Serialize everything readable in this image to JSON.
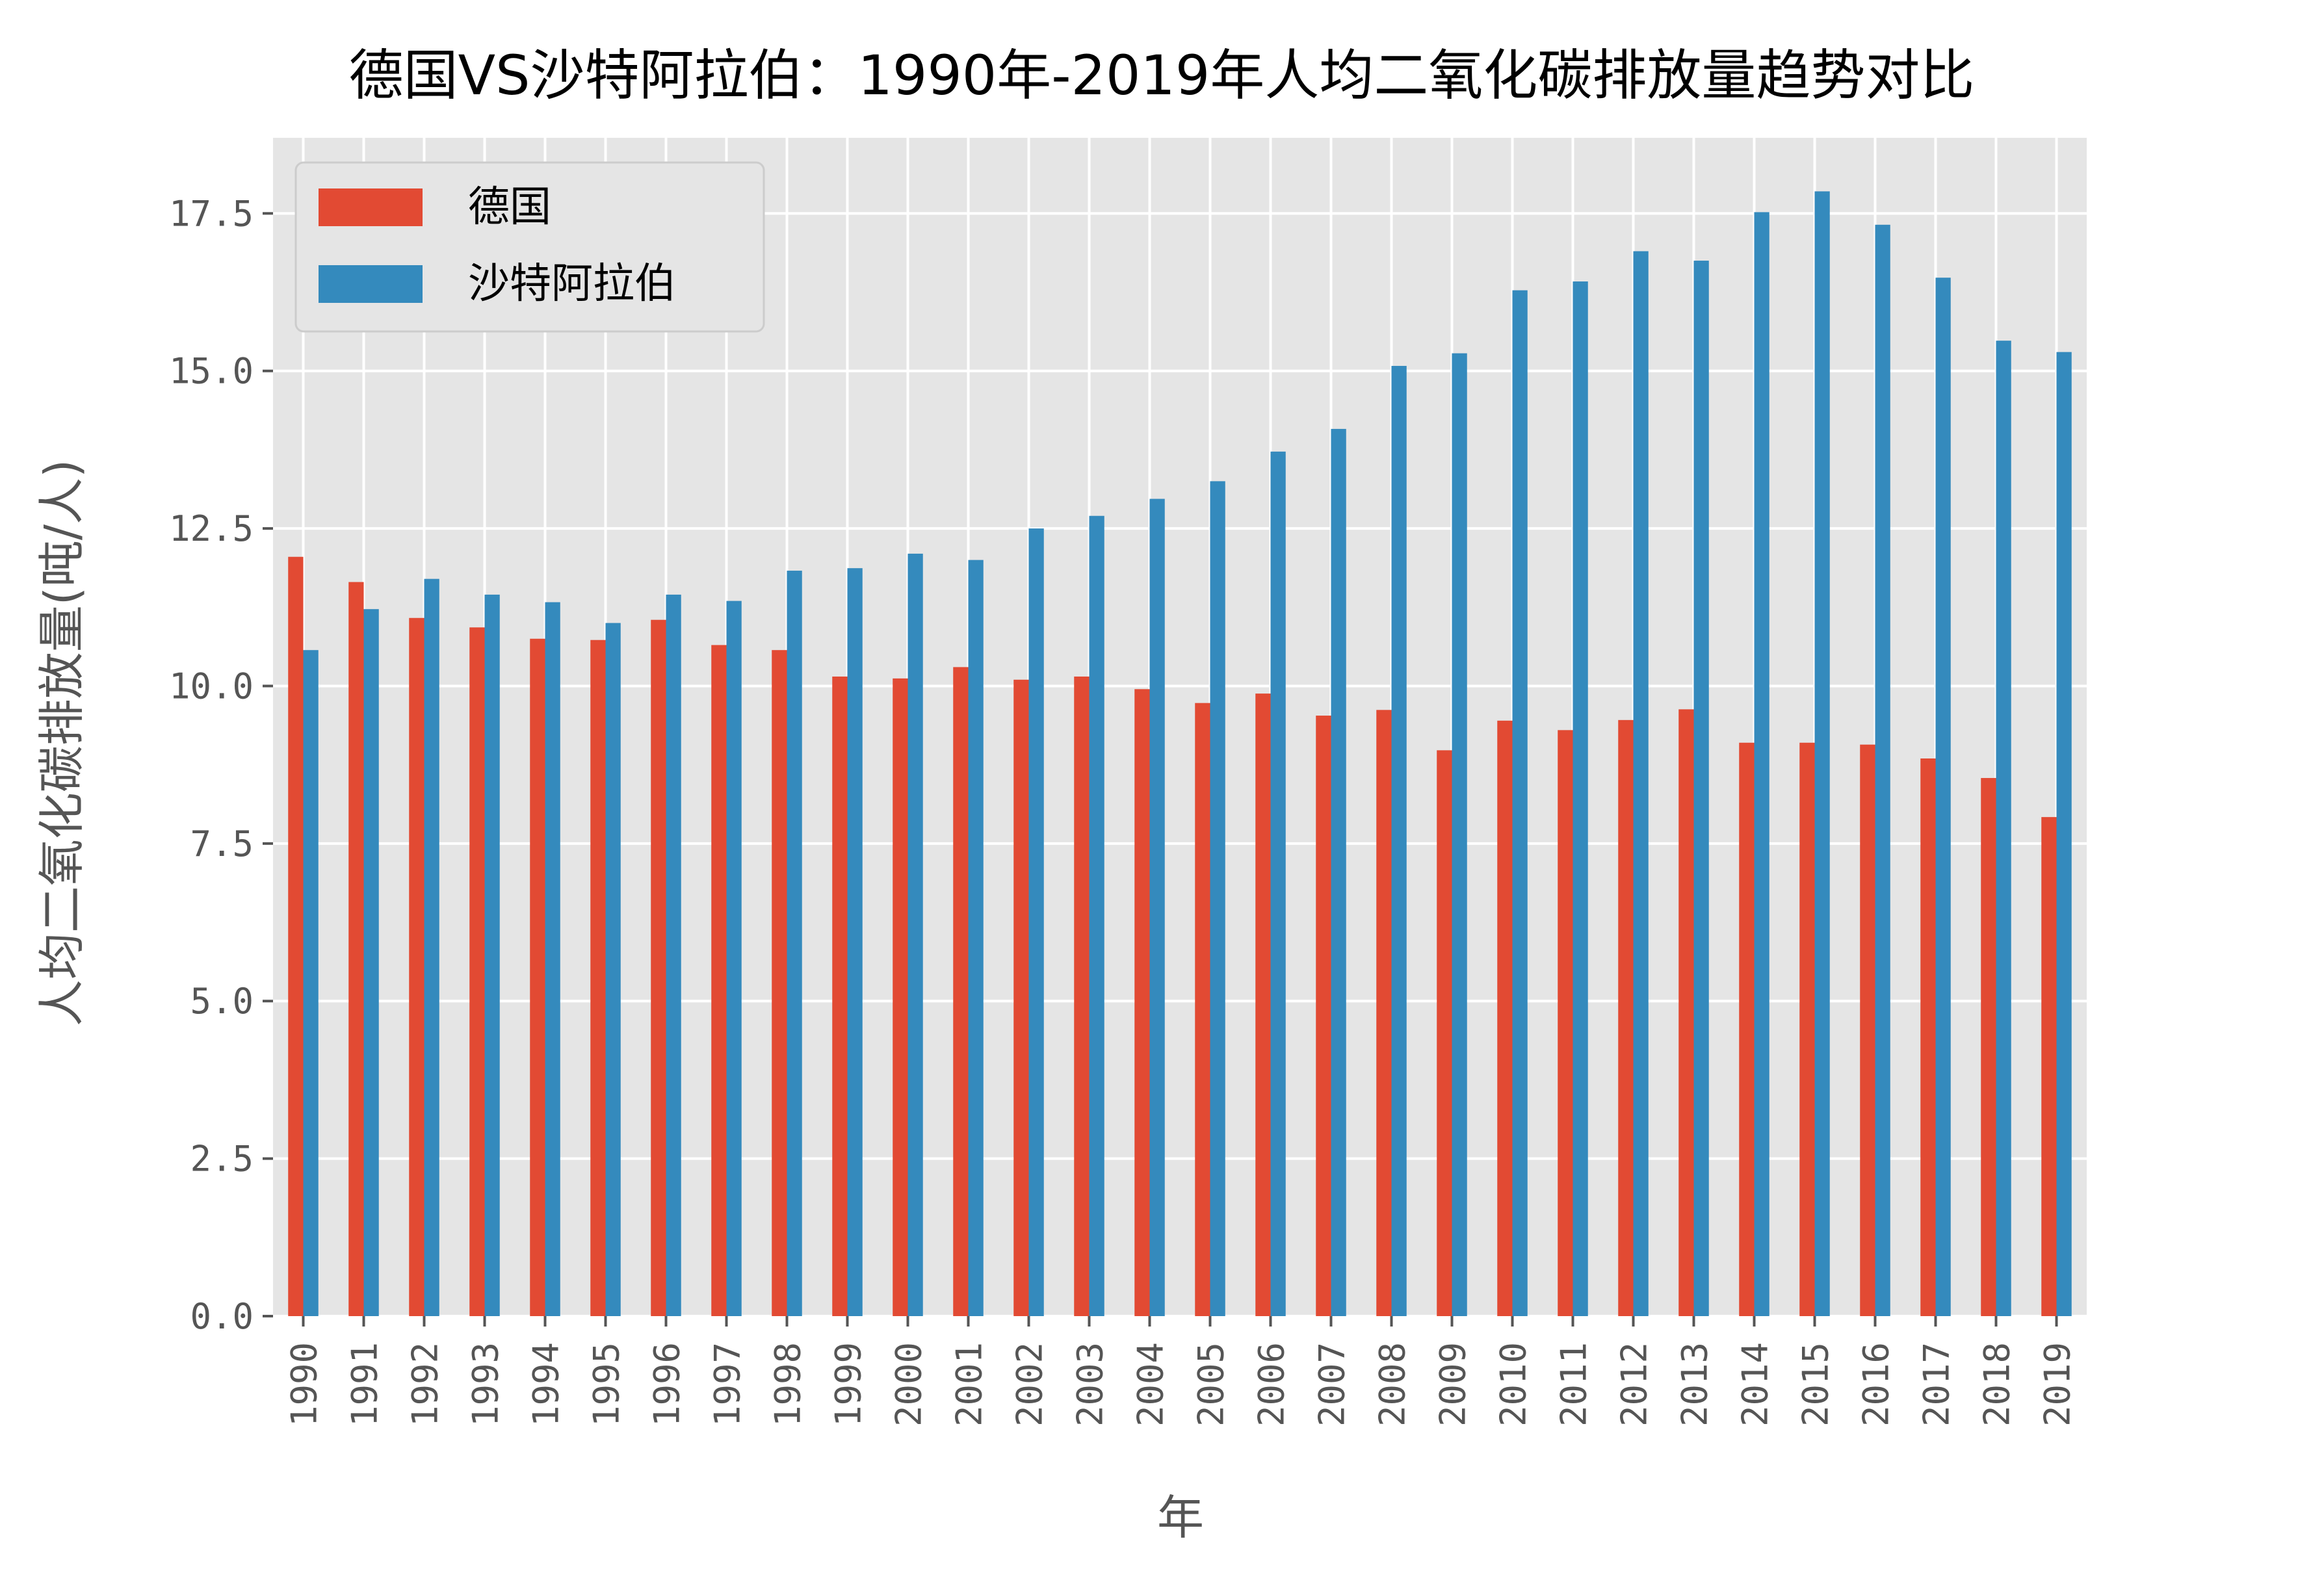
{
  "chart_data": {
    "type": "bar",
    "title": "德国VS沙特阿拉伯：1990年-2019年人均二氧化碳排放量趋势对比",
    "xlabel": "年",
    "ylabel": "人均二氧化碳排放量(吨/人)",
    "ylim": [
      0,
      18.7
    ],
    "yticks": [
      0.0,
      2.5,
      5.0,
      7.5,
      10.0,
      12.5,
      15.0,
      17.5
    ],
    "ytick_labels": [
      "0.0",
      "2.5",
      "5.0",
      "7.5",
      "10.0",
      "12.5",
      "15.0",
      "17.5"
    ],
    "grid": true,
    "legend_position": "top-left",
    "categories": [
      "1990",
      "1991",
      "1992",
      "1993",
      "1994",
      "1995",
      "1996",
      "1997",
      "1998",
      "1999",
      "2000",
      "2001",
      "2002",
      "2003",
      "2004",
      "2005",
      "2006",
      "2007",
      "2008",
      "2009",
      "2010",
      "2011",
      "2012",
      "2013",
      "2014",
      "2015",
      "2016",
      "2017",
      "2018",
      "2019"
    ],
    "series": [
      {
        "name": "德国",
        "color": "#E24A33",
        "values": [
          12.05,
          11.65,
          11.08,
          10.93,
          10.75,
          10.73,
          11.05,
          10.65,
          10.57,
          10.15,
          10.12,
          10.3,
          10.1,
          10.15,
          9.95,
          9.73,
          9.88,
          9.53,
          9.62,
          8.98,
          9.45,
          9.3,
          9.46,
          9.63,
          9.1,
          9.1,
          9.07,
          8.85,
          8.54,
          7.92
        ]
      },
      {
        "name": "沙特阿拉伯",
        "color": "#348ABD",
        "values": [
          10.57,
          11.22,
          11.7,
          11.45,
          11.33,
          11.0,
          11.45,
          11.35,
          11.83,
          11.87,
          12.1,
          12.0,
          12.5,
          12.7,
          12.97,
          13.25,
          13.72,
          14.08,
          15.08,
          15.28,
          16.28,
          16.42,
          16.9,
          16.75,
          17.52,
          17.85,
          17.32,
          16.48,
          15.48,
          15.3
        ]
      }
    ]
  }
}
